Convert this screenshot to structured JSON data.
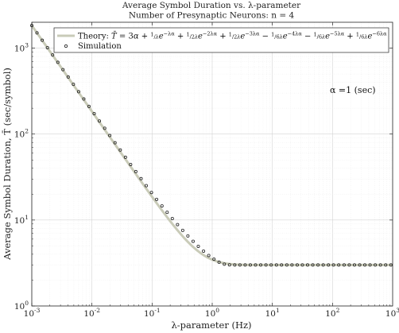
{
  "chart_data": {
    "type": "line",
    "title": "Average Symbol Duration vs. λ-parameter",
    "subtitle": "Number of Presynaptic Neurons: n = 4",
    "xlabel": "λ-parameter (Hz)",
    "ylabel": "Average Symbol Duration, T̄ (sec/symbol)",
    "xscale": "log",
    "yscale": "log",
    "xlim": [
      0.001,
      1000
    ],
    "ylim": [
      1,
      2000
    ],
    "x_ticks": [
      0.001,
      0.01,
      0.1,
      1,
      10,
      100,
      1000
    ],
    "y_ticks": [
      1,
      10,
      100,
      1000
    ],
    "x_tick_labels": [
      {
        "base": "10",
        "exp": "-3"
      },
      {
        "base": "10",
        "exp": "-2"
      },
      {
        "base": "10",
        "exp": "-1"
      },
      {
        "base": "10",
        "exp": "0"
      },
      {
        "base": "10",
        "exp": "1"
      },
      {
        "base": "10",
        "exp": "2"
      },
      {
        "base": "10",
        "exp": "3"
      }
    ],
    "y_tick_labels": [
      {
        "base": "10",
        "exp": "0"
      },
      {
        "base": "10",
        "exp": "1"
      },
      {
        "base": "10",
        "exp": "2"
      },
      {
        "base": "10",
        "exp": "3"
      }
    ],
    "grid": true,
    "minor_grid": true,
    "legend_position": "top",
    "annotation": "α =1 (sec)",
    "alpha": 1,
    "series": [
      {
        "name": "Theory: T̄ = 3α + 1/λ e^{-λα} + 1/(2λ) e^{-2λα} + 1/(2λ) e^{-3λα} − 1/(6λ) e^{-4λα} − 1/(6λ) e^{-5λα} + 1/(6λ) e^{-6λα}",
        "style": "line",
        "color": "#c9cbb8",
        "coefficients": [
          {
            "c": 1,
            "k": 1
          },
          {
            "c": 0.5,
            "k": 2
          },
          {
            "c": 0.5,
            "k": 3
          },
          {
            "c": -0.16667,
            "k": 4
          },
          {
            "c": -0.16667,
            "k": 5
          },
          {
            "c": 0.16667,
            "k": 6
          }
        ],
        "constant": 3
      },
      {
        "name": "Simulation",
        "style": "markers",
        "marker": "circle",
        "color": "#222222",
        "x": [
          0.001,
          0.00122,
          0.00149,
          0.00182,
          0.00222,
          0.00271,
          0.0033,
          0.00403,
          0.00492,
          0.00601,
          0.00733,
          0.00894,
          0.0109,
          0.0133,
          0.0163,
          0.0198,
          0.0242,
          0.0296,
          0.0361,
          0.044,
          0.0537,
          0.0656,
          0.08,
          0.0977,
          0.119,
          0.146,
          0.178,
          0.217,
          0.265,
          0.323,
          0.394,
          0.481,
          0.587,
          0.717,
          0.875,
          1.07,
          1.3,
          1.59,
          1.94,
          2.37,
          2.89,
          3.53,
          4.3,
          5.25,
          6.41,
          7.82,
          9.54,
          11.7,
          14.2,
          17.4,
          21.2,
          25.9,
          31.6,
          38.5,
          47.0,
          57.4,
          70.1,
          85.5,
          104,
          127,
          156,
          190,
          232,
          283,
          345,
          421,
          514,
          628,
          766,
          935
        ],
        "y": [
          1830,
          1503,
          1234,
          1013,
          833,
          684,
          562,
          461,
          379,
          311,
          256,
          210,
          173,
          142,
          116.9,
          96.2,
          79.2,
          65.2,
          53.7,
          44.3,
          36.6,
          30.3,
          25.1,
          20.9,
          17.4,
          14.6,
          12.3,
          10.4,
          8.85,
          7.58,
          6.53,
          5.66,
          4.94,
          4.35,
          3.87,
          3.5,
          3.23,
          3.07,
          3.01,
          3.0,
          3.0,
          3.0,
          3.0,
          3.0,
          3.0,
          3.0,
          3.0,
          3.0,
          3.0,
          3.0,
          3.0,
          3.0,
          3.0,
          3.0,
          3.0,
          3.0,
          3.0,
          3.0,
          3.0,
          3.0,
          3.0,
          3.0,
          3.0,
          3.0,
          3.0,
          3.0,
          3.0,
          3.0,
          3.0,
          3.0
        ]
      }
    ]
  }
}
